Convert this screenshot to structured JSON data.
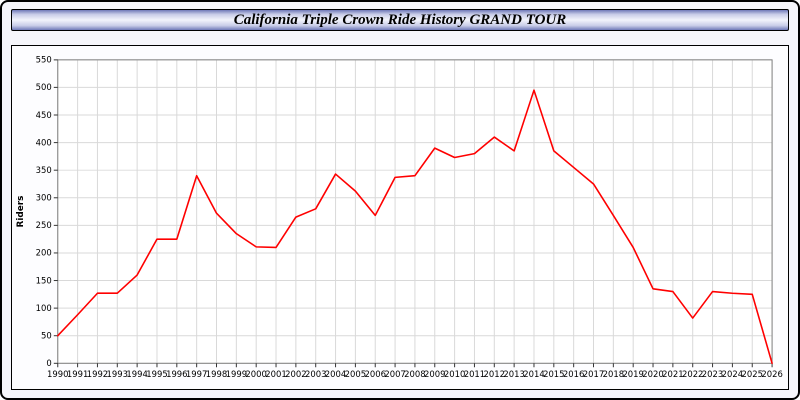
{
  "header": {
    "title": "California Triple Crown Ride History GRAND TOUR"
  },
  "chart_data": {
    "type": "line",
    "title": "California Triple Crown Ride History GRAND TOUR",
    "xlabel": "",
    "ylabel": "Riders",
    "ylim": [
      0,
      550
    ],
    "y_tick_step": 50,
    "grid": true,
    "legend": "none",
    "line_color": "#ff0000",
    "grid_color": "#d9d9d9",
    "axis_color": "#808080",
    "plot_bg": "#ffffff",
    "x": [
      1990,
      1991,
      1992,
      1993,
      1994,
      1995,
      1996,
      1997,
      1998,
      1999,
      2000,
      2001,
      2002,
      2003,
      2004,
      2005,
      2006,
      2007,
      2008,
      2009,
      2010,
      2011,
      2012,
      2013,
      2014,
      2015,
      2016,
      2017,
      2018,
      2019,
      2020,
      2021,
      2022,
      2023,
      2024,
      2025,
      2026
    ],
    "series": [
      {
        "name": "Riders",
        "values": [
          50,
          88,
          127,
          127,
          160,
          225,
          225,
          340,
          272,
          235,
          211,
          210,
          265,
          280,
          343,
          312,
          268,
          337,
          340,
          390,
          373,
          380,
          410,
          385,
          495,
          385,
          355,
          325,
          268,
          210,
          135,
          130,
          82,
          130,
          127,
          125,
          0
        ]
      }
    ]
  }
}
